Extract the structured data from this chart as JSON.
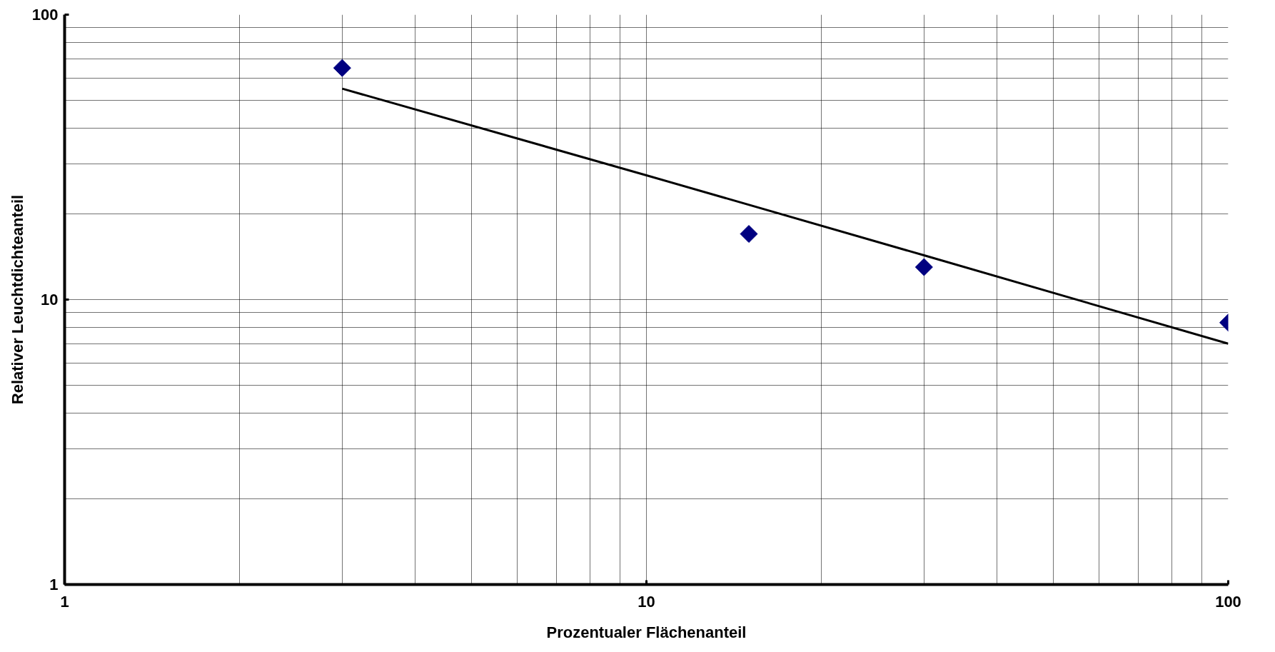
{
  "chart_data": {
    "type": "scatter",
    "xlabel": "Prozentualer Flächenanteil",
    "ylabel": "Relativer Leuchtdichteanteil",
    "series": [
      {
        "color": "#000080",
        "marker": "diamond",
        "x": [
          3,
          15,
          30,
          100
        ],
        "values": [
          65,
          17,
          13,
          8.3
        ]
      },
      {
        "type": "line",
        "color": "#000000",
        "marker": "none",
        "line_style": "solid",
        "x": [
          3,
          10,
          30,
          100
        ],
        "values": [
          55,
          27.3,
          14.3,
          7.0
        ]
      }
    ],
    "log": "xy",
    "xlim": [
      1,
      100
    ],
    "ylim": [
      1,
      100
    ],
    "xticks": [
      1,
      10,
      100
    ],
    "yticks": [
      1,
      10,
      100
    ],
    "grid": true
  }
}
